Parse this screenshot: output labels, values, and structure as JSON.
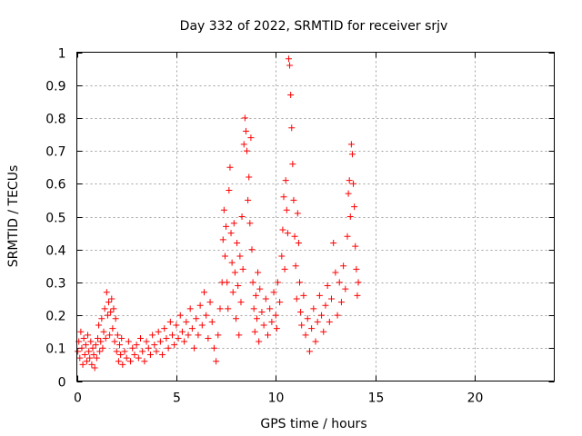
{
  "chart_data": {
    "type": "scatter",
    "title": "Day 332 of 2022, SRMTID for receiver srjv",
    "xlabel": "GPS time / hours",
    "ylabel": "SRMTID / TECUs",
    "xlim": [
      0,
      24
    ],
    "ylim": [
      0,
      1
    ],
    "xticks": [
      0,
      5,
      10,
      15,
      20
    ],
    "yticks": [
      0,
      0.1,
      0.2,
      0.3,
      0.4,
      0.5,
      0.6,
      0.7,
      0.8,
      0.9,
      1
    ],
    "xtick_labels": [
      "0",
      "5",
      "10",
      "15",
      "20"
    ],
    "ytick_labels": [
      "0",
      "0.1",
      "0.2",
      "0.3",
      "0.4",
      "0.5",
      "0.6",
      "0.7",
      "0.8",
      "0.9",
      "1"
    ],
    "grid": true,
    "marker": "+",
    "color": "#ff0000",
    "series": [
      {
        "name": "SRMTID",
        "points": [
          [
            0.05,
            0.09
          ],
          [
            0.1,
            0.12
          ],
          [
            0.15,
            0.07
          ],
          [
            0.2,
            0.15
          ],
          [
            0.25,
            0.1
          ],
          [
            0.3,
            0.05
          ],
          [
            0.35,
            0.13
          ],
          [
            0.4,
            0.08
          ],
          [
            0.45,
            0.11
          ],
          [
            0.5,
            0.06
          ],
          [
            0.55,
            0.14
          ],
          [
            0.6,
            0.09
          ],
          [
            0.65,
            0.07
          ],
          [
            0.7,
            0.12
          ],
          [
            0.75,
            0.05
          ],
          [
            0.8,
            0.1
          ],
          [
            0.85,
            0.08
          ],
          [
            0.9,
            0.04
          ],
          [
            0.95,
            0.11
          ],
          [
            1.0,
            0.07
          ],
          [
            1.05,
            0.13
          ],
          [
            1.1,
            0.17
          ],
          [
            1.15,
            0.09
          ],
          [
            1.2,
            0.12
          ],
          [
            1.25,
            0.19
          ],
          [
            1.3,
            0.1
          ],
          [
            1.35,
            0.15
          ],
          [
            1.4,
            0.22
          ],
          [
            1.45,
            0.13
          ],
          [
            1.5,
            0.27
          ],
          [
            1.55,
            0.2
          ],
          [
            1.6,
            0.24
          ],
          [
            1.65,
            0.14
          ],
          [
            1.7,
            0.21
          ],
          [
            1.75,
            0.25
          ],
          [
            1.8,
            0.16
          ],
          [
            1.85,
            0.22
          ],
          [
            1.9,
            0.12
          ],
          [
            1.95,
            0.19
          ],
          [
            2.0,
            0.09
          ],
          [
            2.05,
            0.14
          ],
          [
            2.1,
            0.06
          ],
          [
            2.15,
            0.11
          ],
          [
            2.2,
            0.08
          ],
          [
            2.25,
            0.13
          ],
          [
            2.3,
            0.05
          ],
          [
            2.4,
            0.09
          ],
          [
            2.5,
            0.07
          ],
          [
            2.6,
            0.12
          ],
          [
            2.7,
            0.06
          ],
          [
            2.8,
            0.1
          ],
          [
            2.9,
            0.08
          ],
          [
            3.0,
            0.11
          ],
          [
            3.1,
            0.07
          ],
          [
            3.2,
            0.13
          ],
          [
            3.3,
            0.09
          ],
          [
            3.4,
            0.06
          ],
          [
            3.5,
            0.12
          ],
          [
            3.6,
            0.1
          ],
          [
            3.7,
            0.08
          ],
          [
            3.8,
            0.14
          ],
          [
            3.9,
            0.11
          ],
          [
            4.0,
            0.09
          ],
          [
            4.1,
            0.15
          ],
          [
            4.2,
            0.12
          ],
          [
            4.3,
            0.08
          ],
          [
            4.4,
            0.16
          ],
          [
            4.5,
            0.13
          ],
          [
            4.6,
            0.1
          ],
          [
            4.7,
            0.18
          ],
          [
            4.8,
            0.14
          ],
          [
            4.9,
            0.11
          ],
          [
            5.0,
            0.17
          ],
          [
            5.1,
            0.13
          ],
          [
            5.2,
            0.2
          ],
          [
            5.3,
            0.15
          ],
          [
            5.4,
            0.12
          ],
          [
            5.5,
            0.18
          ],
          [
            5.6,
            0.14
          ],
          [
            5.7,
            0.22
          ],
          [
            5.8,
            0.16
          ],
          [
            5.9,
            0.1
          ],
          [
            6.0,
            0.19
          ],
          [
            6.1,
            0.14
          ],
          [
            6.2,
            0.23
          ],
          [
            6.3,
            0.17
          ],
          [
            6.4,
            0.27
          ],
          [
            6.5,
            0.2
          ],
          [
            6.6,
            0.13
          ],
          [
            6.7,
            0.24
          ],
          [
            6.8,
            0.18
          ],
          [
            6.9,
            0.1
          ],
          [
            7.0,
            0.06
          ],
          [
            7.1,
            0.14
          ],
          [
            7.2,
            0.22
          ],
          [
            7.3,
            0.3
          ],
          [
            7.35,
            0.43
          ],
          [
            7.4,
            0.52
          ],
          [
            7.45,
            0.38
          ],
          [
            7.5,
            0.47
          ],
          [
            7.55,
            0.3
          ],
          [
            7.6,
            0.22
          ],
          [
            7.65,
            0.58
          ],
          [
            7.7,
            0.65
          ],
          [
            7.75,
            0.45
          ],
          [
            7.8,
            0.36
          ],
          [
            7.85,
            0.27
          ],
          [
            7.9,
            0.48
          ],
          [
            7.95,
            0.33
          ],
          [
            8.0,
            0.19
          ],
          [
            8.05,
            0.42
          ],
          [
            8.1,
            0.29
          ],
          [
            8.15,
            0.14
          ],
          [
            8.2,
            0.38
          ],
          [
            8.25,
            0.24
          ],
          [
            8.3,
            0.5
          ],
          [
            8.35,
            0.34
          ],
          [
            8.4,
            0.72
          ],
          [
            8.45,
            0.8
          ],
          [
            8.5,
            0.76
          ],
          [
            8.55,
            0.7
          ],
          [
            8.6,
            0.55
          ],
          [
            8.65,
            0.62
          ],
          [
            8.7,
            0.48
          ],
          [
            8.75,
            0.74
          ],
          [
            8.8,
            0.4
          ],
          [
            8.85,
            0.3
          ],
          [
            8.9,
            0.22
          ],
          [
            8.95,
            0.15
          ],
          [
            9.0,
            0.26
          ],
          [
            9.05,
            0.19
          ],
          [
            9.1,
            0.33
          ],
          [
            9.15,
            0.12
          ],
          [
            9.2,
            0.28
          ],
          [
            9.3,
            0.21
          ],
          [
            9.4,
            0.17
          ],
          [
            9.5,
            0.25
          ],
          [
            9.6,
            0.14
          ],
          [
            9.7,
            0.22
          ],
          [
            9.8,
            0.18
          ],
          [
            9.9,
            0.27
          ],
          [
            10.0,
            0.2
          ],
          [
            10.05,
            0.16
          ],
          [
            10.1,
            0.3
          ],
          [
            10.2,
            0.24
          ],
          [
            10.3,
            0.38
          ],
          [
            10.35,
            0.46
          ],
          [
            10.4,
            0.56
          ],
          [
            10.45,
            0.34
          ],
          [
            10.5,
            0.61
          ],
          [
            10.55,
            0.52
          ],
          [
            10.6,
            0.45
          ],
          [
            10.65,
            0.98
          ],
          [
            10.7,
            0.96
          ],
          [
            10.75,
            0.87
          ],
          [
            10.8,
            0.77
          ],
          [
            10.85,
            0.66
          ],
          [
            10.9,
            0.55
          ],
          [
            10.95,
            0.44
          ],
          [
            11.0,
            0.35
          ],
          [
            11.05,
            0.25
          ],
          [
            11.1,
            0.51
          ],
          [
            11.15,
            0.42
          ],
          [
            11.2,
            0.3
          ],
          [
            11.25,
            0.21
          ],
          [
            11.3,
            0.17
          ],
          [
            11.4,
            0.26
          ],
          [
            11.5,
            0.14
          ],
          [
            11.6,
            0.19
          ],
          [
            11.7,
            0.09
          ],
          [
            11.8,
            0.16
          ],
          [
            11.9,
            0.22
          ],
          [
            12.0,
            0.12
          ],
          [
            12.1,
            0.18
          ],
          [
            12.2,
            0.26
          ],
          [
            12.3,
            0.2
          ],
          [
            12.4,
            0.15
          ],
          [
            12.5,
            0.23
          ],
          [
            12.6,
            0.29
          ],
          [
            12.7,
            0.18
          ],
          [
            12.8,
            0.25
          ],
          [
            12.9,
            0.42
          ],
          [
            13.0,
            0.33
          ],
          [
            13.1,
            0.2
          ],
          [
            13.2,
            0.3
          ],
          [
            13.3,
            0.24
          ],
          [
            13.4,
            0.35
          ],
          [
            13.5,
            0.28
          ],
          [
            13.6,
            0.44
          ],
          [
            13.65,
            0.57
          ],
          [
            13.7,
            0.61
          ],
          [
            13.75,
            0.5
          ],
          [
            13.8,
            0.72
          ],
          [
            13.85,
            0.69
          ],
          [
            13.9,
            0.6
          ],
          [
            13.95,
            0.53
          ],
          [
            14.0,
            0.41
          ],
          [
            14.05,
            0.34
          ],
          [
            14.1,
            0.26
          ],
          [
            14.15,
            0.3
          ]
        ]
      }
    ]
  }
}
